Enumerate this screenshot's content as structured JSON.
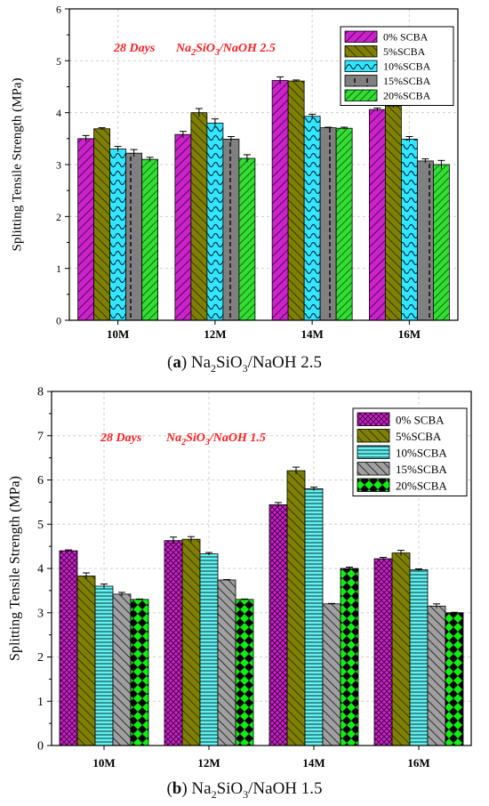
{
  "chart_data": [
    {
      "type": "bar",
      "ylabel": "Splitting Tensile Strength (MPa)",
      "ylim": [
        0,
        6
      ],
      "yticks": [
        0,
        1,
        2,
        3,
        4,
        5,
        6
      ],
      "categories": [
        "10M",
        "12M",
        "14M",
        "16M"
      ],
      "annotations": {
        "days": "28 Days",
        "ratio_main": "Na",
        "ratio_sub1": "2",
        "ratio_mid": "SiO",
        "ratio_sub2": "3",
        "ratio_end": "/NaOH 2.5"
      },
      "legend_position": "top-right",
      "grid": true,
      "series": [
        {
          "name": "0% SCBA",
          "values": [
            3.5,
            3.58,
            4.62,
            4.06
          ],
          "errors": [
            0.06,
            0.06,
            0.07,
            0.03
          ],
          "color": "#cc22cc",
          "pattern": "diag-right"
        },
        {
          "name": "5%SCBA",
          "values": [
            3.69,
            4.0,
            4.61,
            4.13
          ],
          "errors": [
            0.02,
            0.08,
            0.02,
            0.03
          ],
          "color": "#808000",
          "pattern": "diag-left"
        },
        {
          "name": "10%SCBA",
          "values": [
            3.3,
            3.8,
            3.93,
            3.49
          ],
          "errors": [
            0.05,
            0.08,
            0.04,
            0.05
          ],
          "color": "#33e6ff",
          "pattern": "scallop"
        },
        {
          "name": "15%SCBA",
          "values": [
            3.22,
            3.49,
            3.71,
            3.07
          ],
          "errors": [
            0.07,
            0.05,
            0.01,
            0.04
          ],
          "color": "#808080",
          "pattern": "dashed-v"
        },
        {
          "name": "20%SCBA",
          "values": [
            3.1,
            3.12,
            3.7,
            3.0
          ],
          "errors": [
            0.04,
            0.07,
            0.02,
            0.08
          ],
          "color": "#33dd33",
          "pattern": "diag-right-dense"
        }
      ],
      "caption": {
        "label": "a",
        "text_main": " Na",
        "sub1": "2",
        "mid": "SiO",
        "sub2": "3",
        "end": "/NaOH 2.5"
      }
    },
    {
      "type": "bar",
      "ylabel": "Splitting Tensile Strength (MPa)",
      "ylim": [
        0,
        8
      ],
      "yticks": [
        0,
        1,
        2,
        3,
        4,
        5,
        6,
        7,
        8
      ],
      "categories": [
        "10M",
        "12M",
        "14M",
        "16M"
      ],
      "annotations": {
        "days": "28 Days",
        "ratio_main": "Na",
        "ratio_sub1": "2",
        "ratio_mid": "SiO",
        "ratio_sub2": "3",
        "ratio_end": "/NaOH 1.5"
      },
      "legend_position": "top-right",
      "grid": true,
      "series": [
        {
          "name": "0% SCBA",
          "values": [
            4.4,
            4.63,
            5.44,
            4.22
          ],
          "errors": [
            0.02,
            0.08,
            0.05,
            0.03
          ],
          "color": "#cc22cc",
          "pattern": "crosshatch"
        },
        {
          "name": "5%SCBA",
          "values": [
            3.83,
            4.66,
            6.21,
            4.35
          ],
          "errors": [
            0.07,
            0.06,
            0.08,
            0.06
          ],
          "color": "#808000",
          "pattern": "diag-left"
        },
        {
          "name": "10%SCBA",
          "values": [
            3.6,
            4.33,
            5.8,
            3.97
          ],
          "errors": [
            0.05,
            0.03,
            0.04,
            0.02
          ],
          "color": "#33e6ff",
          "pattern": "horizontal"
        },
        {
          "name": "15%SCBA",
          "values": [
            3.42,
            3.74,
            3.2,
            3.15
          ],
          "errors": [
            0.04,
            0.01,
            0.01,
            0.05
          ],
          "color": "#808080",
          "pattern": "diag-right"
        },
        {
          "name": "20%SCBA",
          "values": [
            3.3,
            3.3,
            4.0,
            3.0
          ],
          "errors": [
            0.01,
            0.01,
            0.03,
            0.01
          ],
          "color": "#11ee11",
          "pattern": "diamond"
        }
      ],
      "caption": {
        "label": "b",
        "text_main": " Na",
        "sub1": "2",
        "mid": "SiO",
        "sub2": "3",
        "end": "/NaOH 1.5"
      }
    }
  ]
}
